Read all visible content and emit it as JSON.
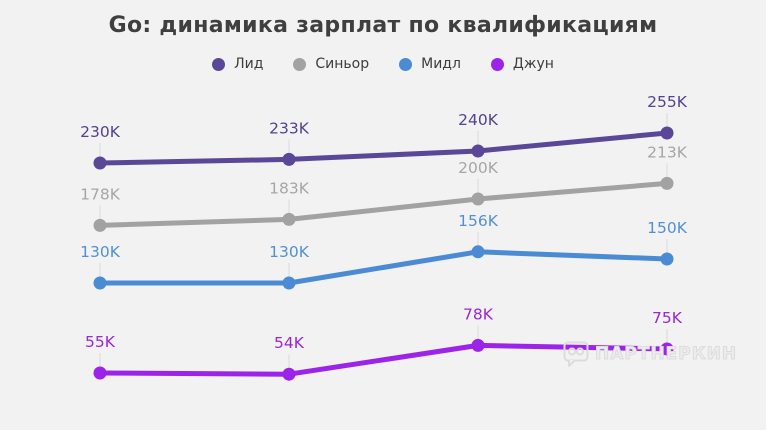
{
  "chart_data": {
    "type": "line",
    "title": "Go: динамика зарплат по квалификациям",
    "legend_position": "top",
    "grid": false,
    "axes_visible": false,
    "x_tick_labels_visible": false,
    "value_suffix": "K",
    "background_color": "#f2f2f2",
    "title_color": "#3f3f3f",
    "connector_color": "#d9d9d9",
    "series": [
      {
        "name": "Лид",
        "color": "#5a4798",
        "label_color": "#54418f",
        "values": [
          230,
          233,
          240,
          255
        ],
        "labels": [
          "230K",
          "233K",
          "240K",
          "255K"
        ]
      },
      {
        "name": "Синьор",
        "color": "#a2a2a2",
        "label_color": "#a6a6a6",
        "values": [
          178,
          183,
          200,
          213
        ],
        "labels": [
          "178K",
          "183K",
          "200K",
          "213K"
        ]
      },
      {
        "name": "Мидл",
        "color": "#4a8bd4",
        "label_color": "#5290d2",
        "values": [
          130,
          130,
          156,
          150
        ],
        "labels": [
          "130K",
          "130K",
          "156K",
          "150K"
        ]
      },
      {
        "name": "Джун",
        "color": "#9c24e8",
        "label_color": "#9a27cf",
        "values": [
          55,
          54,
          78,
          75
        ],
        "labels": [
          "55K",
          "54K",
          "78K",
          "75K"
        ]
      }
    ]
  },
  "watermark": {
    "text": "ПАРТНЕРКИН"
  }
}
